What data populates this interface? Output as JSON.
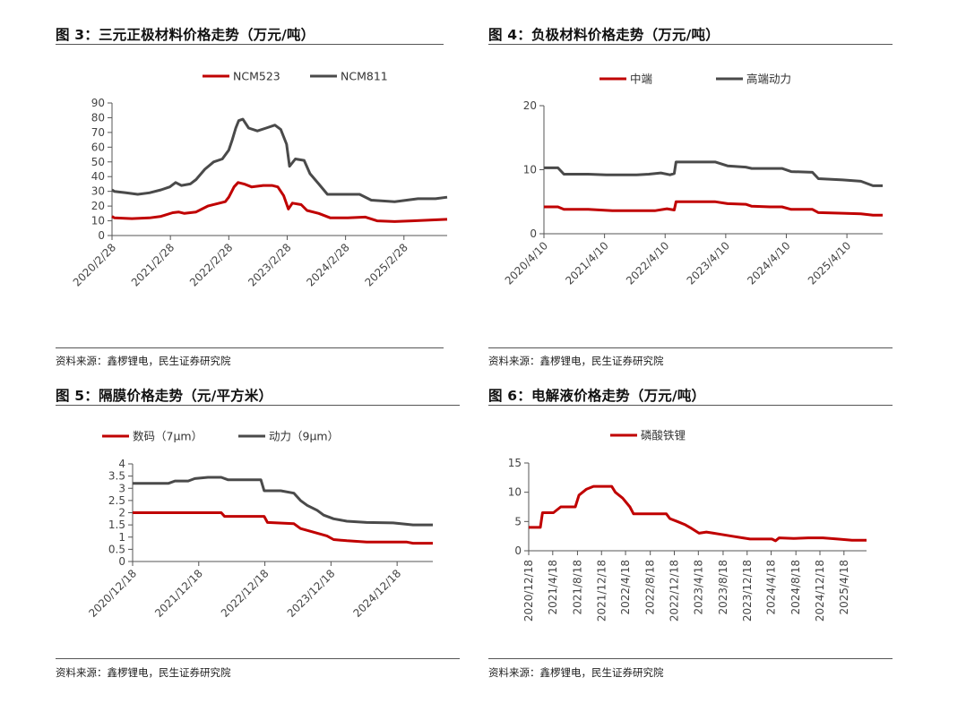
{
  "colors": {
    "red": "#c00000",
    "gray": "#4a4a4a"
  },
  "source_text": "资料来源：鑫椤锂电，民生证券研究院",
  "chart_data": [
    {
      "id": "fig3",
      "type": "line",
      "title": "图 3：三元正极材料价格走势（万元/吨）",
      "ylim": [
        0,
        90
      ],
      "yticks": [
        "0",
        "10",
        "20",
        "30",
        "40",
        "50",
        "60",
        "70",
        "80",
        "90"
      ],
      "xticks": [
        "2020/2/28",
        "2021/2/28",
        "2022/2/28",
        "2023/2/28",
        "2024/2/28",
        "2025/2/28"
      ],
      "x_range": [
        2020.16,
        2025.9
      ],
      "x_tick_positions": [
        2020.16,
        2021.16,
        2022.16,
        2023.16,
        2024.16,
        2025.16
      ],
      "series": [
        {
          "name": "NCM523",
          "color": "red",
          "points": [
            [
              2020.16,
              13
            ],
            [
              2020.2,
              12
            ],
            [
              2020.5,
              11.5
            ],
            [
              2020.8,
              12
            ],
            [
              2021.0,
              13
            ],
            [
              2021.2,
              15.5
            ],
            [
              2021.3,
              16
            ],
            [
              2021.4,
              15
            ],
            [
              2021.6,
              16
            ],
            [
              2021.8,
              20
            ],
            [
              2022.0,
              22
            ],
            [
              2022.1,
              23
            ],
            [
              2022.16,
              26
            ],
            [
              2022.25,
              33
            ],
            [
              2022.32,
              36
            ],
            [
              2022.42,
              35
            ],
            [
              2022.55,
              33
            ],
            [
              2022.75,
              34
            ],
            [
              2022.9,
              34
            ],
            [
              2023.0,
              33
            ],
            [
              2023.1,
              27
            ],
            [
              2023.18,
              18
            ],
            [
              2023.25,
              22
            ],
            [
              2023.4,
              21
            ],
            [
              2023.5,
              17
            ],
            [
              2023.7,
              15
            ],
            [
              2023.9,
              12
            ],
            [
              2024.2,
              12
            ],
            [
              2024.5,
              12.5
            ],
            [
              2024.7,
              10
            ],
            [
              2025.0,
              9.5
            ],
            [
              2025.3,
              10
            ],
            [
              2025.6,
              10.5
            ],
            [
              2025.9,
              11
            ]
          ]
        },
        {
          "name": "NCM811",
          "color": "gray",
          "points": [
            [
              2020.16,
              31
            ],
            [
              2020.2,
              30
            ],
            [
              2020.4,
              29
            ],
            [
              2020.6,
              28
            ],
            [
              2020.8,
              29
            ],
            [
              2021.0,
              31
            ],
            [
              2021.15,
              33
            ],
            [
              2021.25,
              36
            ],
            [
              2021.35,
              34
            ],
            [
              2021.5,
              35
            ],
            [
              2021.6,
              38
            ],
            [
              2021.75,
              45
            ],
            [
              2021.9,
              50
            ],
            [
              2022.05,
              52
            ],
            [
              2022.16,
              58
            ],
            [
              2022.22,
              65
            ],
            [
              2022.28,
              73
            ],
            [
              2022.33,
              78
            ],
            [
              2022.4,
              79
            ],
            [
              2022.5,
              73
            ],
            [
              2022.65,
              71
            ],
            [
              2022.8,
              73
            ],
            [
              2022.95,
              75
            ],
            [
              2023.05,
              72
            ],
            [
              2023.15,
              62
            ],
            [
              2023.2,
              47
            ],
            [
              2023.3,
              52
            ],
            [
              2023.45,
              51
            ],
            [
              2023.55,
              42
            ],
            [
              2023.7,
              35
            ],
            [
              2023.85,
              28
            ],
            [
              2024.1,
              28
            ],
            [
              2024.4,
              28
            ],
            [
              2024.6,
              24
            ],
            [
              2025.0,
              23
            ],
            [
              2025.4,
              25
            ],
            [
              2025.7,
              25
            ],
            [
              2025.9,
              26
            ]
          ]
        }
      ]
    },
    {
      "id": "fig4",
      "type": "line",
      "title": "图 4：负极材料价格走势（万元/吨）",
      "ylim": [
        0,
        20
      ],
      "yticks": [
        "0",
        "10",
        "20"
      ],
      "xticks": [
        "2020/4/10",
        "2021/4/10",
        "2022/4/10",
        "2023/4/10",
        "2024/4/10",
        "2025/4/10"
      ],
      "x_range": [
        2020.27,
        2025.86
      ],
      "x_tick_positions": [
        2020.27,
        2021.27,
        2022.27,
        2023.27,
        2024.27,
        2025.27
      ],
      "series": [
        {
          "name": "中端",
          "color": "red",
          "points": [
            [
              2020.27,
              4.2
            ],
            [
              2020.5,
              4.2
            ],
            [
              2020.6,
              3.8
            ],
            [
              2021.0,
              3.8
            ],
            [
              2021.4,
              3.6
            ],
            [
              2021.8,
              3.6
            ],
            [
              2022.1,
              3.6
            ],
            [
              2022.3,
              3.9
            ],
            [
              2022.42,
              3.7
            ],
            [
              2022.45,
              5.0
            ],
            [
              2022.8,
              5.0
            ],
            [
              2023.1,
              5.0
            ],
            [
              2023.3,
              4.7
            ],
            [
              2023.6,
              4.6
            ],
            [
              2023.7,
              4.3
            ],
            [
              2024.0,
              4.2
            ],
            [
              2024.2,
              4.2
            ],
            [
              2024.35,
              3.8
            ],
            [
              2024.7,
              3.8
            ],
            [
              2024.8,
              3.3
            ],
            [
              2025.2,
              3.2
            ],
            [
              2025.5,
              3.1
            ],
            [
              2025.7,
              2.9
            ],
            [
              2025.86,
              2.9
            ]
          ]
        },
        {
          "name": "高端动力",
          "color": "gray",
          "points": [
            [
              2020.27,
              10.3
            ],
            [
              2020.5,
              10.3
            ],
            [
              2020.6,
              9.3
            ],
            [
              2021.0,
              9.3
            ],
            [
              2021.3,
              9.2
            ],
            [
              2021.8,
              9.2
            ],
            [
              2022.0,
              9.3
            ],
            [
              2022.2,
              9.5
            ],
            [
              2022.35,
              9.2
            ],
            [
              2022.42,
              9.4
            ],
            [
              2022.45,
              11.2
            ],
            [
              2022.8,
              11.2
            ],
            [
              2023.1,
              11.2
            ],
            [
              2023.3,
              10.6
            ],
            [
              2023.6,
              10.4
            ],
            [
              2023.7,
              10.2
            ],
            [
              2024.0,
              10.2
            ],
            [
              2024.2,
              10.2
            ],
            [
              2024.35,
              9.7
            ],
            [
              2024.7,
              9.6
            ],
            [
              2024.8,
              8.6
            ],
            [
              2025.2,
              8.4
            ],
            [
              2025.5,
              8.2
            ],
            [
              2025.7,
              7.5
            ],
            [
              2025.86,
              7.5
            ]
          ]
        }
      ]
    },
    {
      "id": "fig5",
      "type": "line",
      "title": "图 5：隔膜价格走势（元/平方米）",
      "ylim": [
        0,
        4
      ],
      "yticks": [
        "0",
        "0.5",
        "1",
        "1.5",
        "2",
        "2.5",
        "3",
        "3.5",
        "4"
      ],
      "xticks": [
        "2020/12/18",
        "2021/12/18",
        "2022/12/18",
        "2023/12/18",
        "2024/12/18"
      ],
      "x_range": [
        2020.96,
        2025.5
      ],
      "x_tick_positions": [
        2020.96,
        2021.96,
        2022.96,
        2023.96,
        2024.96
      ],
      "series": [
        {
          "name": "数码（7μm）",
          "color": "red",
          "points": [
            [
              2020.96,
              2.0
            ],
            [
              2021.5,
              2.0
            ],
            [
              2022.0,
              2.0
            ],
            [
              2022.3,
              2.0
            ],
            [
              2022.35,
              1.85
            ],
            [
              2022.7,
              1.85
            ],
            [
              2022.95,
              1.85
            ],
            [
              2023.0,
              1.6
            ],
            [
              2023.4,
              1.55
            ],
            [
              2023.5,
              1.35
            ],
            [
              2023.7,
              1.2
            ],
            [
              2023.9,
              1.05
            ],
            [
              2024.0,
              0.9
            ],
            [
              2024.2,
              0.85
            ],
            [
              2024.5,
              0.8
            ],
            [
              2024.8,
              0.8
            ],
            [
              2025.1,
              0.8
            ],
            [
              2025.2,
              0.75
            ],
            [
              2025.5,
              0.75
            ]
          ]
        },
        {
          "name": "动力（9μm）",
          "color": "gray",
          "points": [
            [
              2020.96,
              3.2
            ],
            [
              2021.5,
              3.2
            ],
            [
              2021.6,
              3.3
            ],
            [
              2021.8,
              3.3
            ],
            [
              2021.9,
              3.4
            ],
            [
              2022.1,
              3.45
            ],
            [
              2022.3,
              3.45
            ],
            [
              2022.4,
              3.35
            ],
            [
              2022.6,
              3.35
            ],
            [
              2022.9,
              3.35
            ],
            [
              2022.95,
              2.9
            ],
            [
              2023.2,
              2.9
            ],
            [
              2023.4,
              2.8
            ],
            [
              2023.5,
              2.5
            ],
            [
              2023.6,
              2.3
            ],
            [
              2023.75,
              2.1
            ],
            [
              2023.85,
              1.9
            ],
            [
              2024.0,
              1.75
            ],
            [
              2024.2,
              1.65
            ],
            [
              2024.5,
              1.6
            ],
            [
              2024.9,
              1.58
            ],
            [
              2025.2,
              1.5
            ],
            [
              2025.5,
              1.5
            ]
          ]
        }
      ]
    },
    {
      "id": "fig6",
      "type": "line",
      "title": "图 6：电解液价格走势（万元/吨）",
      "ylim": [
        0,
        15
      ],
      "yticks": [
        "0",
        "5",
        "10",
        "15"
      ],
      "xticks": [
        "2020/12/18",
        "2021/4/18",
        "2021/8/18",
        "2021/12/18",
        "2022/4/18",
        "2022/8/18",
        "2022/12/18",
        "2023/4/18",
        "2023/8/18",
        "2023/12/18",
        "2024/4/18",
        "2024/8/18",
        "2024/12/18",
        "2025/4/18"
      ],
      "x_range": [
        2020.96,
        2025.6
      ],
      "x_tick_positions": [
        2020.96,
        2021.29,
        2021.63,
        2021.96,
        2022.29,
        2022.63,
        2022.96,
        2023.29,
        2023.63,
        2023.96,
        2024.29,
        2024.63,
        2024.96,
        2025.29
      ],
      "series": [
        {
          "name": "磷酸铁锂",
          "color": "red",
          "points": [
            [
              2020.96,
              4.0
            ],
            [
              2021.05,
              4.0
            ],
            [
              2021.12,
              4.0
            ],
            [
              2021.15,
              6.5
            ],
            [
              2021.3,
              6.5
            ],
            [
              2021.4,
              7.5
            ],
            [
              2021.5,
              7.5
            ],
            [
              2021.6,
              7.5
            ],
            [
              2021.65,
              9.5
            ],
            [
              2021.75,
              10.5
            ],
            [
              2021.85,
              11.0
            ],
            [
              2022.0,
              11.0
            ],
            [
              2022.1,
              11.0
            ],
            [
              2022.15,
              10.0
            ],
            [
              2022.25,
              9.0
            ],
            [
              2022.35,
              7.5
            ],
            [
              2022.4,
              6.3
            ],
            [
              2022.55,
              6.3
            ],
            [
              2022.7,
              6.3
            ],
            [
              2022.85,
              6.3
            ],
            [
              2022.9,
              5.5
            ],
            [
              2023.0,
              5.0
            ],
            [
              2023.1,
              4.5
            ],
            [
              2023.2,
              3.8
            ],
            [
              2023.3,
              3.0
            ],
            [
              2023.4,
              3.2
            ],
            [
              2023.5,
              3.0
            ],
            [
              2023.6,
              2.8
            ],
            [
              2023.75,
              2.5
            ],
            [
              2023.9,
              2.2
            ],
            [
              2024.0,
              2.0
            ],
            [
              2024.2,
              2.0
            ],
            [
              2024.3,
              2.0
            ],
            [
              2024.35,
              1.7
            ],
            [
              2024.4,
              2.2
            ],
            [
              2024.6,
              2.1
            ],
            [
              2024.8,
              2.2
            ],
            [
              2025.0,
              2.2
            ],
            [
              2025.2,
              2.0
            ],
            [
              2025.4,
              1.8
            ],
            [
              2025.6,
              1.8
            ]
          ]
        }
      ]
    }
  ]
}
